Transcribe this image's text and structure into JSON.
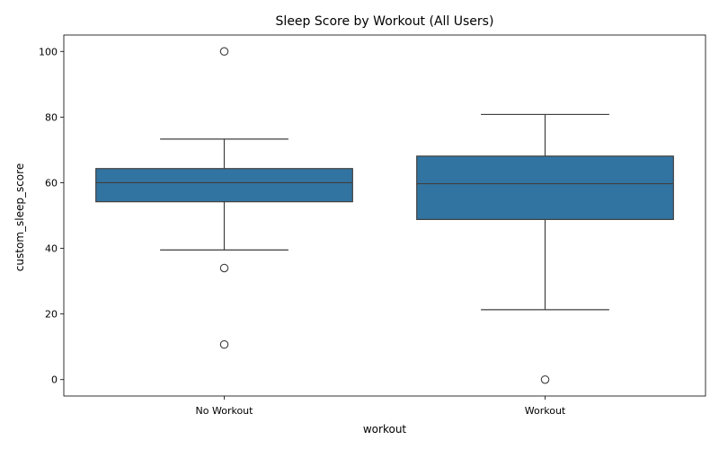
{
  "chart_data": {
    "type": "box",
    "title": "Sleep Score by Workout (All Users)",
    "xlabel": "workout",
    "ylabel": "custom_sleep_score",
    "categories": [
      "No Workout",
      "Workout"
    ],
    "boxes": [
      {
        "category": "No Workout",
        "q1": 54.2,
        "median": 60.0,
        "q3": 64.3,
        "whisker_low": 39.5,
        "whisker_high": 73.3,
        "outliers": [
          100.0,
          34.0,
          10.7
        ]
      },
      {
        "category": "Workout",
        "q1": 48.8,
        "median": 59.7,
        "q3": 68.1,
        "whisker_low": 21.3,
        "whisker_high": 80.8,
        "outliers": [
          0.0
        ]
      }
    ],
    "ylim": [
      -5,
      105
    ],
    "yticks": [
      0,
      20,
      40,
      60,
      80,
      100
    ],
    "grid": false,
    "legend": "none",
    "colors": {
      "box_fill": "#3274a1",
      "line": "#3f3f3f"
    }
  }
}
